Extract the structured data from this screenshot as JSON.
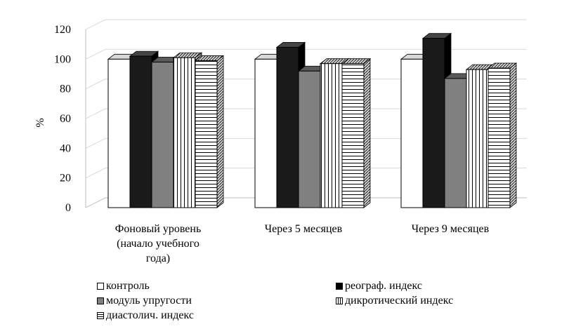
{
  "chart_data": {
    "type": "bar",
    "style": "3d-clustered-column",
    "ylabel": "%",
    "ylim": [
      0,
      120
    ],
    "yticks": [
      0,
      20,
      40,
      60,
      80,
      100,
      120
    ],
    "grid": true,
    "legend_position": "bottom",
    "categories": [
      [
        "Фоновый уровень",
        "(начало учебного",
        "года)"
      ],
      [
        "Через 5 месяцев"
      ],
      [
        "Через 9 месяцев"
      ]
    ],
    "series": [
      {
        "name": "контроль",
        "values": [
          100,
          100,
          100
        ],
        "fill": "white"
      },
      {
        "name": "реограф. индекс",
        "values": [
          102,
          108,
          114
        ],
        "fill": "black"
      },
      {
        "name": "модуль упругости",
        "values": [
          98,
          92,
          87
        ],
        "fill": "gray"
      },
      {
        "name": "дикротический индекс",
        "values": [
          101,
          97,
          93
        ],
        "fill": "vertical-stripes"
      },
      {
        "name": "диастолич. индекс",
        "values": [
          99,
          97,
          94
        ],
        "fill": "horizontal-stripes"
      }
    ]
  },
  "colors": {
    "black_fill": "#1a1a1a",
    "gray_fill": "#808080",
    "grid": "#d9d9d9",
    "axis": "#bfbfbf"
  }
}
